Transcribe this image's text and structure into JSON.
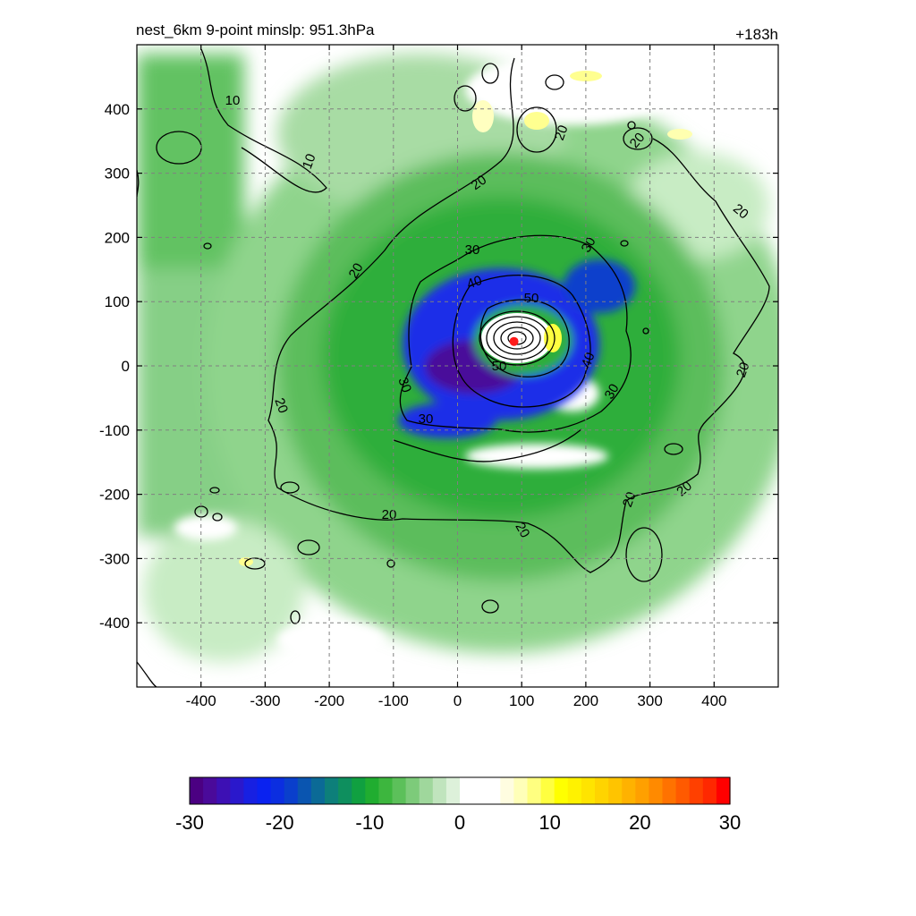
{
  "header": {
    "title": "nest_6km  9-point minslp: 951.3hPa",
    "time_label": "+183h"
  },
  "chart_data": {
    "type": "heatmap",
    "title": "nest_6km  9-point minslp: 951.3hPa",
    "time_label": "+183h",
    "xlim": [
      -500,
      500
    ],
    "ylim": [
      -500,
      500
    ],
    "x_ticks": [
      -400,
      -300,
      -200,
      -100,
      0,
      100,
      200,
      300,
      400
    ],
    "y_ticks": [
      400,
      300,
      200,
      100,
      0,
      -100,
      -200,
      -300,
      -400
    ],
    "x_tick_labels": [
      "-400",
      "-300",
      "-200",
      "-100",
      "0",
      "100",
      "200",
      "300",
      "400"
    ],
    "y_tick_labels": [
      "400",
      "300",
      "200",
      "100",
      "0",
      "-100",
      "-200",
      "-300",
      "-400"
    ],
    "grid": true,
    "storm_center": [
      88,
      38
    ],
    "colorbar": {
      "min": -30,
      "max": 30,
      "ticks": [
        -30,
        -20,
        -10,
        0,
        10,
        20,
        30
      ],
      "tick_labels": [
        "-30",
        "-20",
        "-10",
        "0",
        "10",
        "20",
        "30"
      ],
      "colors": [
        "#4b0082",
        "#4a0a9a",
        "#3d10b4",
        "#2a18cc",
        "#1720e2",
        "#0a22f0",
        "#0b2ee0",
        "#0a3fcc",
        "#0a55b0",
        "#0b6a96",
        "#0d7f7a",
        "#0e8f5e",
        "#10a040",
        "#20ad30",
        "#3db63e",
        "#5cc05a",
        "#7dcb7a",
        "#9fd79c",
        "#c0e4bd",
        "#ddf1da",
        "#ffffff",
        "#ffffff",
        "#ffffff",
        "#fffde0",
        "#ffffb8",
        "#ffff80",
        "#ffff40",
        "#ffff00",
        "#fff200",
        "#ffe400",
        "#ffd400",
        "#ffc400",
        "#ffb200",
        "#ffa000",
        "#ff8a00",
        "#ff7200",
        "#ff5a00",
        "#ff4000",
        "#ff2800",
        "#ff0000"
      ]
    },
    "contours": [
      {
        "level": 10,
        "label": "10"
      },
      {
        "level": 20,
        "label": "20"
      },
      {
        "level": 30,
        "label": "30"
      },
      {
        "level": 40,
        "label": "40"
      },
      {
        "level": 50,
        "label": "50"
      }
    ]
  }
}
